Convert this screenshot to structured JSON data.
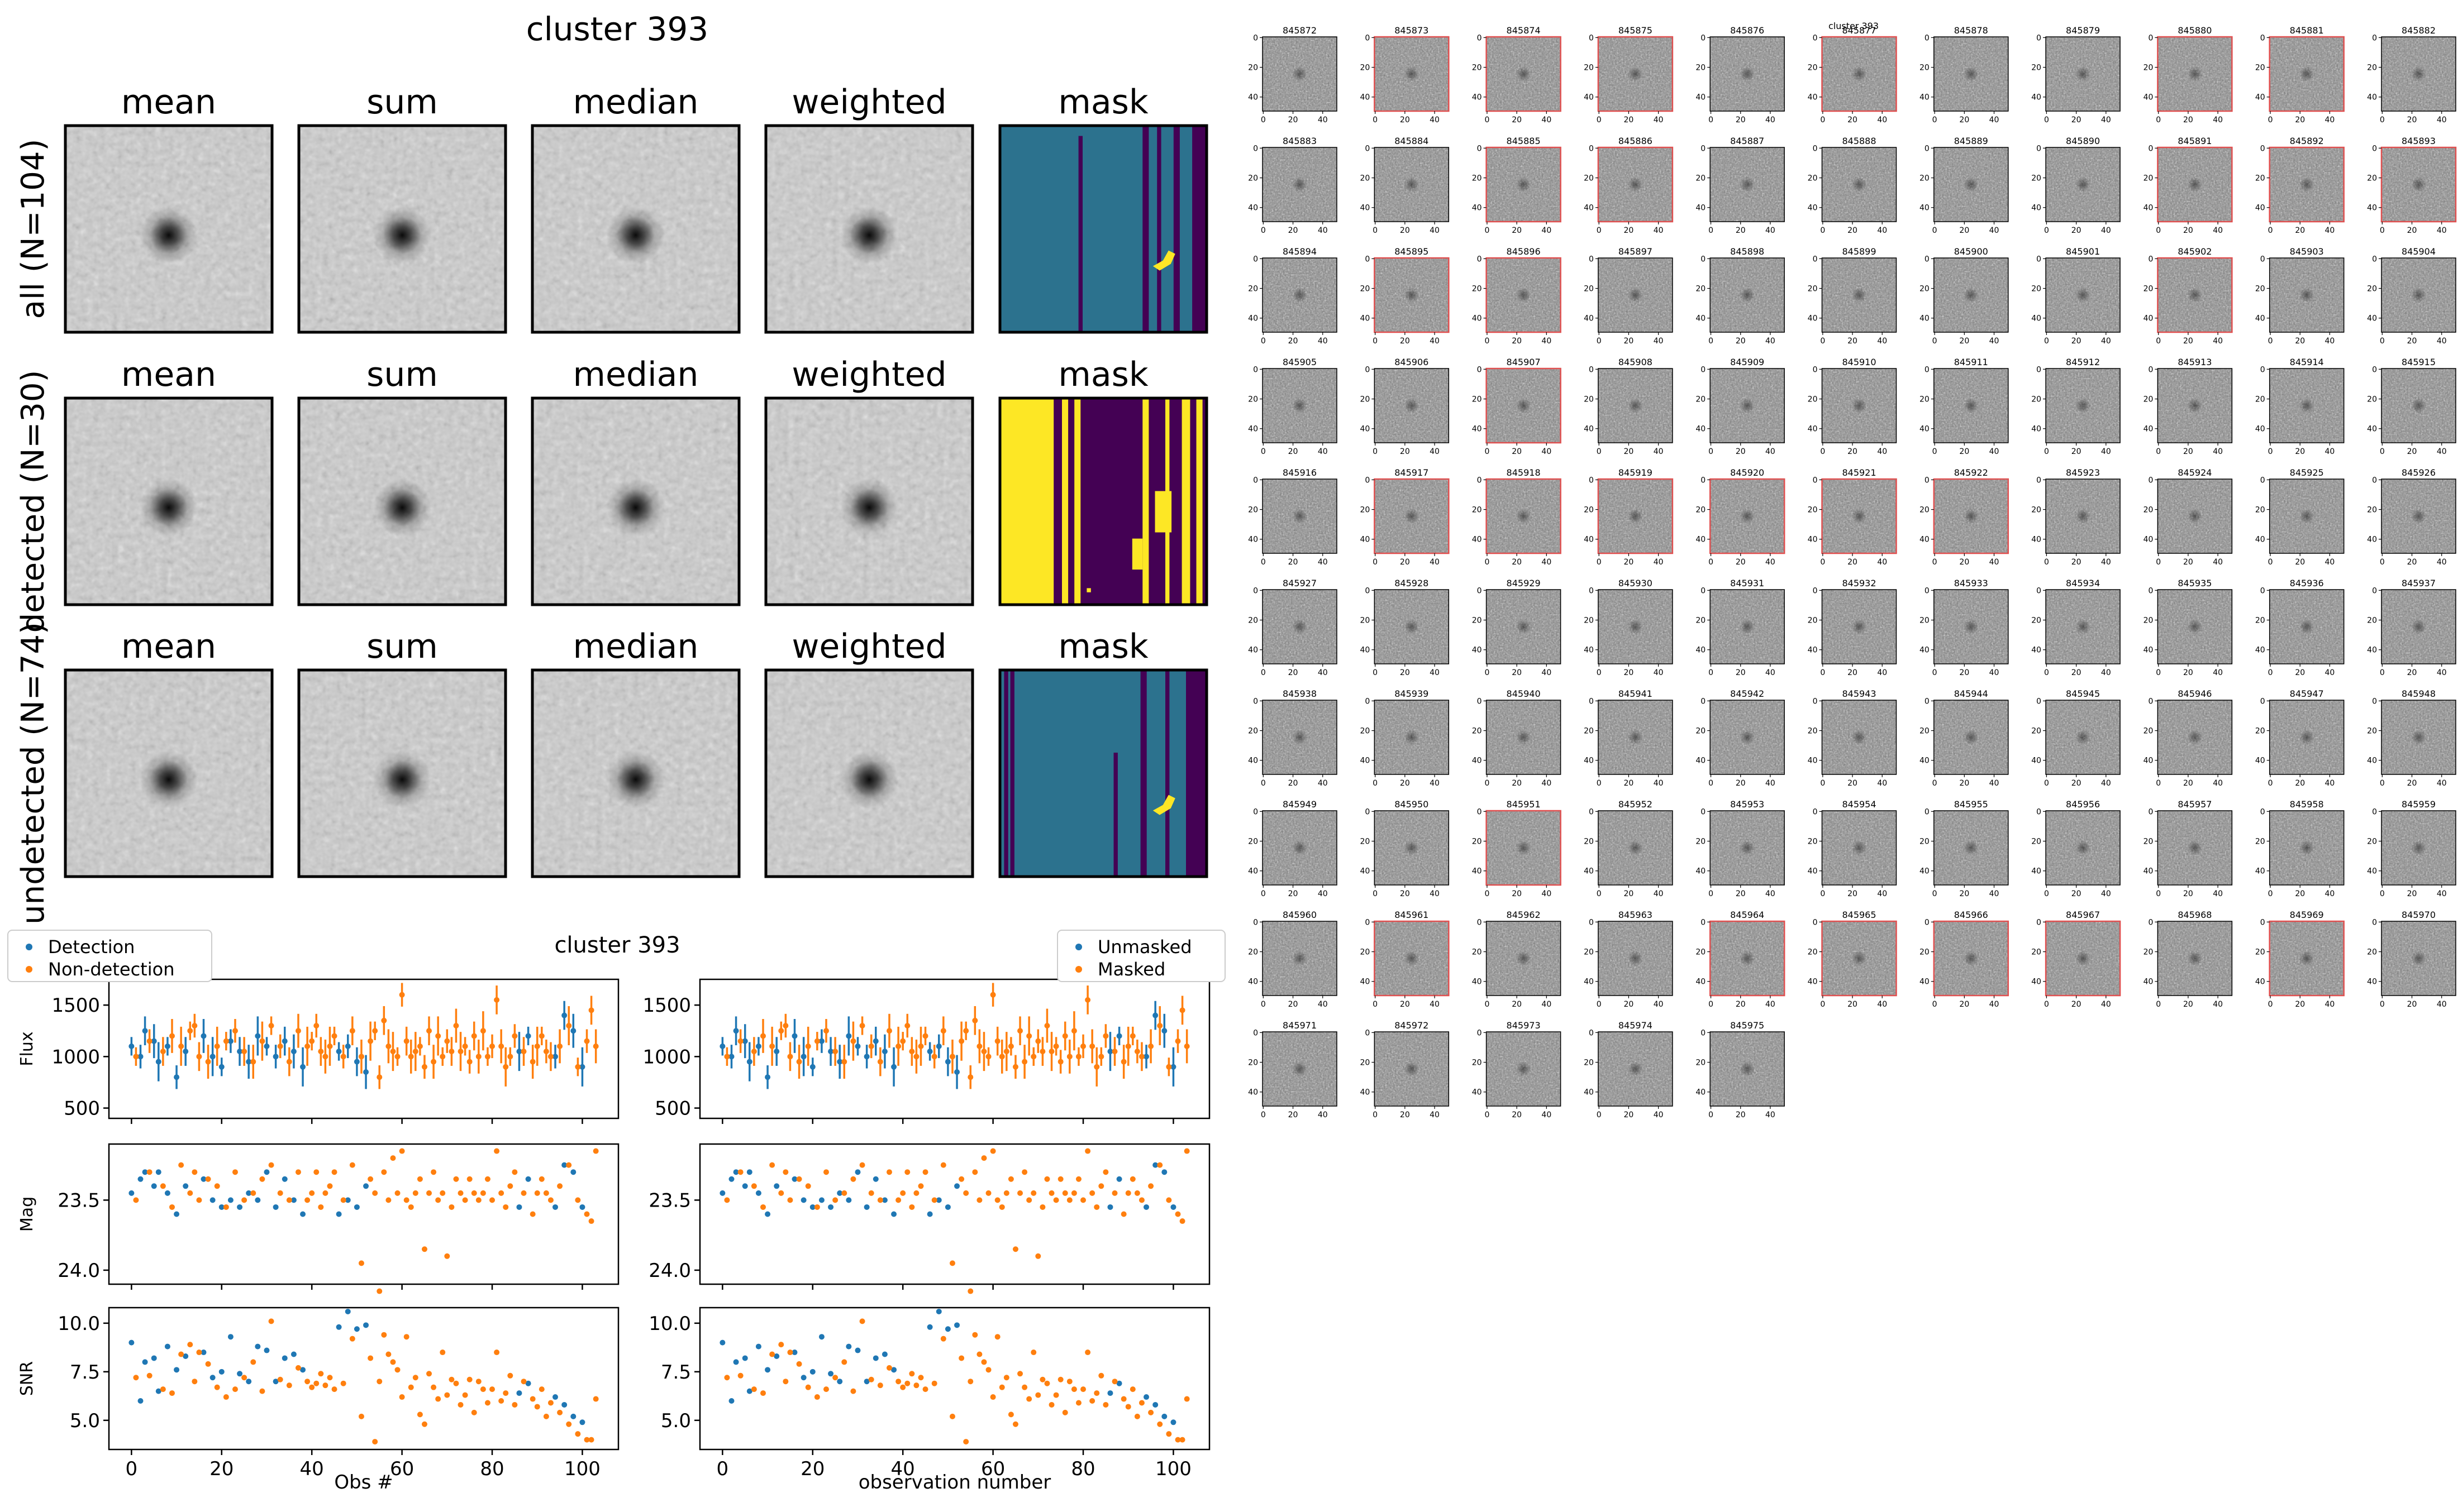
{
  "stamps_figure": {
    "title": "cluster 393",
    "column_titles": [
      "mean",
      "sum",
      "median",
      "weighted",
      "mask"
    ],
    "row_labels": [
      "all (N=104)",
      "detected (N=30)",
      "undetected (N=74)"
    ]
  },
  "lightcurve_figure": {
    "title": "cluster 393",
    "left_legend": [
      "Detection",
      "Non-detection"
    ],
    "right_legend": [
      "Unmasked",
      "Masked"
    ],
    "ylabels": [
      "Flux",
      "Mag",
      "SNR"
    ],
    "left_xlabel": "Obs #",
    "right_xlabel": "observation number",
    "x_ticks": [
      "0",
      "20",
      "40",
      "60",
      "80",
      "100"
    ],
    "flux_ticks": [
      "500",
      "1000",
      "1500"
    ],
    "mag_ticks": [
      "23.5",
      "24.0"
    ],
    "snr_ticks": [
      "5.0",
      "7.5",
      "10.0"
    ]
  },
  "cutout_figure": {
    "title": "cluster 393",
    "axis_ticks": [
      "0",
      "20",
      "40"
    ],
    "rows": [
      [
        "845872",
        "845873",
        "845874",
        "845875",
        "845876",
        "845877",
        "845878",
        "845879",
        "845880",
        "845881",
        "845882"
      ],
      [
        "845883",
        "845884",
        "845885",
        "845886",
        "845887",
        "845888",
        "845889",
        "845890",
        "845891",
        "845892",
        "845893"
      ],
      [
        "845894",
        "845895",
        "845896",
        "845897",
        "845898",
        "845899",
        "845900",
        "845901",
        "845902",
        "845903",
        "845904"
      ],
      [
        "845905",
        "845906",
        "845907",
        "845908",
        "845909",
        "845910",
        "845911",
        "845912",
        "845913",
        "845914",
        "845915"
      ],
      [
        "845916",
        "845917",
        "845918",
        "845919",
        "845920",
        "845921",
        "845922",
        "845923",
        "845924",
        "845925",
        "845926"
      ],
      [
        "845927",
        "845928",
        "845929",
        "845930",
        "845931",
        "845932",
        "845933",
        "845934",
        "845935",
        "845936",
        "845937"
      ],
      [
        "845938",
        "845939",
        "845940",
        "845941",
        "845942",
        "845943",
        "845944",
        "845945",
        "845946",
        "845947",
        "845948"
      ],
      [
        "845949",
        "845950",
        "845951",
        "845952",
        "845953",
        "845954",
        "845955",
        "845956",
        "845957",
        "845958",
        "845959"
      ],
      [
        "845960",
        "845961",
        "845962",
        "845963",
        "845964",
        "845965",
        "845966",
        "845967",
        "845968",
        "845969",
        "845970"
      ],
      [
        "845971",
        "845972",
        "845973",
        "845974",
        "845975"
      ]
    ],
    "red_framed": [
      "845873",
      "845874",
      "845875",
      "845877",
      "845880",
      "845881",
      "845885",
      "845886",
      "845891",
      "845892",
      "845893",
      "845895",
      "845896",
      "845902",
      "845907",
      "845917",
      "845918",
      "845919",
      "845920",
      "845921",
      "845922",
      "845951",
      "845961",
      "845964",
      "845965",
      "845966",
      "845967",
      "845969"
    ]
  },
  "colors": {
    "detection": "#1f77b4",
    "non_detection": "#ff7f0e",
    "mask_teal": "#2c728e",
    "mask_purple": "#440154",
    "mask_yellow": "#fde725",
    "red_frame": "#e05050"
  },
  "chart_data": [
    {
      "type": "scatter",
      "panel": "flux vs observation number",
      "x_range": [
        0,
        103
      ],
      "ylim": [
        400,
        1750
      ],
      "series": [
        {
          "name": "Detection",
          "x": [
            0,
            2,
            3,
            5,
            6,
            8,
            10,
            12,
            16,
            18,
            20,
            22,
            24,
            26,
            28,
            30,
            32,
            34,
            36,
            38,
            46,
            48,
            50,
            52,
            86,
            88,
            94,
            96,
            98,
            100
          ],
          "y": [
            1100,
            1000,
            1250,
            1150,
            950,
            1100,
            800,
            1050,
            1200,
            1000,
            900,
            1150,
            1050,
            950,
            1200,
            1100,
            1000,
            1150,
            1050,
            900,
            1050,
            1100,
            950,
            850,
            1050,
            1200,
            1000,
            1400,
            1250,
            900
          ]
        },
        {
          "name": "Non-detection",
          "x": [
            1,
            4,
            7,
            9,
            11,
            13,
            14,
            15,
            17,
            19,
            21,
            23,
            25,
            27,
            29,
            31,
            33,
            35,
            37,
            39,
            40,
            41,
            42,
            43,
            44,
            45,
            47,
            49,
            51,
            53,
            54,
            55,
            56,
            57,
            58,
            59,
            60,
            61,
            62,
            63,
            64,
            65,
            66,
            67,
            68,
            69,
            70,
            71,
            72,
            73,
            74,
            75,
            76,
            77,
            78,
            79,
            80,
            81,
            82,
            83,
            84,
            85,
            87,
            89,
            90,
            91,
            92,
            93,
            95,
            97,
            99,
            101,
            102,
            103
          ],
          "y": [
            1000,
            1150,
            1050,
            1200,
            1100,
            1250,
            1300,
            1000,
            950,
            1100,
            1150,
            1250,
            1050,
            950,
            1150,
            1300,
            1100,
            950,
            1250,
            1100,
            1150,
            1300,
            1050,
            1000,
            1100,
            1200,
            1000,
            1250,
            1000,
            1150,
            1250,
            800,
            1350,
            1100,
            1050,
            1000,
            1600,
            1150,
            1000,
            1050,
            1100,
            900,
            1250,
            950,
            1200,
            1000,
            1150,
            1050,
            1300,
            1050,
            1100,
            950,
            1200,
            1000,
            1250,
            1000,
            1100,
            1550,
            1100,
            900,
            1000,
            1200,
            1050,
            950,
            1100,
            1200,
            1050,
            1000,
            1100,
            1300,
            900,
            1150,
            1450,
            1100
          ]
        }
      ]
    },
    {
      "type": "scatter",
      "panel": "magnitude vs observation number",
      "x_range": [
        0,
        103
      ],
      "ylim": [
        24.1,
        23.1
      ],
      "series": [
        {
          "name": "Detection",
          "x": [
            0,
            2,
            3,
            5,
            6,
            8,
            10,
            12,
            16,
            18,
            20,
            22,
            24,
            26,
            28,
            30,
            32,
            34,
            36,
            38,
            46,
            48,
            50,
            52,
            86,
            88,
            94,
            96,
            98,
            100
          ],
          "y": [
            23.45,
            23.35,
            23.3,
            23.4,
            23.3,
            23.45,
            23.6,
            23.4,
            23.35,
            23.5,
            23.55,
            23.5,
            23.55,
            23.45,
            23.5,
            23.3,
            23.55,
            23.35,
            23.5,
            23.6,
            23.6,
            23.5,
            23.55,
            23.4,
            23.55,
            23.35,
            23.55,
            23.25,
            23.3,
            23.55
          ]
        },
        {
          "name": "Non-detection",
          "x": [
            1,
            4,
            7,
            9,
            11,
            13,
            14,
            15,
            17,
            19,
            21,
            23,
            25,
            27,
            29,
            31,
            33,
            35,
            37,
            39,
            40,
            41,
            42,
            43,
            44,
            45,
            47,
            49,
            51,
            53,
            54,
            55,
            56,
            57,
            58,
            59,
            60,
            61,
            62,
            63,
            64,
            65,
            66,
            67,
            68,
            69,
            70,
            71,
            72,
            73,
            74,
            75,
            76,
            77,
            78,
            79,
            80,
            81,
            82,
            83,
            84,
            85,
            87,
            89,
            90,
            91,
            92,
            93,
            95,
            97,
            99,
            101,
            102,
            103
          ],
          "y": [
            23.5,
            23.3,
            23.4,
            23.55,
            23.25,
            23.45,
            23.3,
            23.5,
            23.35,
            23.4,
            23.55,
            23.3,
            23.5,
            23.45,
            23.35,
            23.25,
            23.45,
            23.5,
            23.3,
            23.5,
            23.45,
            23.3,
            23.55,
            23.45,
            23.4,
            23.3,
            23.5,
            23.25,
            23.95,
            23.35,
            23.45,
            24.15,
            23.3,
            23.5,
            23.2,
            23.45,
            23.15,
            23.5,
            23.55,
            23.45,
            23.35,
            23.85,
            23.45,
            23.3,
            23.5,
            23.45,
            23.9,
            23.55,
            23.35,
            23.45,
            23.5,
            23.35,
            23.45,
            23.5,
            23.45,
            23.35,
            23.5,
            23.15,
            23.45,
            23.55,
            23.4,
            23.3,
            23.45,
            23.6,
            23.45,
            23.35,
            23.45,
            23.5,
            23.4,
            23.25,
            23.5,
            23.6,
            23.65,
            23.15
          ]
        }
      ]
    },
    {
      "type": "scatter",
      "panel": "SNR vs observation number",
      "x_range": [
        0,
        103
      ],
      "ylim": [
        3.5,
        10.8
      ],
      "series": [
        {
          "name": "Detection",
          "x": [
            0,
            2,
            3,
            5,
            6,
            8,
            10,
            12,
            16,
            18,
            20,
            22,
            24,
            26,
            28,
            30,
            32,
            34,
            36,
            38,
            46,
            48,
            50,
            52,
            86,
            88,
            94,
            96,
            98,
            100
          ],
          "y": [
            9.0,
            6.0,
            8.0,
            8.2,
            6.5,
            8.8,
            7.6,
            8.3,
            8.5,
            7.2,
            7.5,
            9.3,
            7.4,
            7.0,
            8.8,
            8.6,
            7.0,
            8.2,
            8.4,
            7.6,
            9.8,
            10.6,
            9.7,
            9.9,
            6.4,
            6.9,
            6.2,
            5.8,
            5.2,
            4.9
          ]
        },
        {
          "name": "Non-detection",
          "x": [
            1,
            4,
            7,
            9,
            11,
            13,
            14,
            15,
            17,
            19,
            21,
            23,
            25,
            27,
            29,
            31,
            33,
            35,
            37,
            39,
            40,
            41,
            42,
            43,
            44,
            45,
            47,
            49,
            51,
            53,
            54,
            55,
            56,
            57,
            58,
            59,
            60,
            61,
            62,
            63,
            64,
            65,
            66,
            67,
            68,
            69,
            70,
            71,
            72,
            73,
            74,
            75,
            76,
            77,
            78,
            79,
            80,
            81,
            82,
            83,
            84,
            85,
            87,
            89,
            90,
            91,
            92,
            93,
            95,
            97,
            99,
            101,
            102,
            103
          ],
          "y": [
            7.2,
            7.3,
            6.6,
            6.4,
            8.4,
            8.9,
            7.0,
            8.5,
            7.9,
            6.7,
            6.2,
            6.6,
            7.2,
            8.0,
            6.5,
            10.1,
            7.1,
            6.8,
            7.7,
            7.0,
            6.7,
            6.9,
            7.4,
            6.8,
            7.2,
            6.6,
            6.9,
            9.2,
            5.2,
            8.2,
            3.9,
            7.0,
            9.4,
            8.4,
            8.0,
            7.6,
            6.2,
            9.3,
            6.7,
            7.2,
            5.3,
            4.8,
            7.4,
            6.7,
            6.1,
            8.5,
            6.3,
            7.1,
            6.9,
            5.8,
            6.3,
            7.1,
            5.4,
            7.0,
            6.6,
            5.9,
            6.6,
            8.5,
            6.0,
            6.4,
            7.3,
            5.8,
            7.0,
            6.1,
            5.7,
            6.6,
            5.2,
            5.9,
            5.4,
            4.8,
            4.3,
            4.0,
            4.0,
            6.1
          ]
        }
      ]
    }
  ]
}
